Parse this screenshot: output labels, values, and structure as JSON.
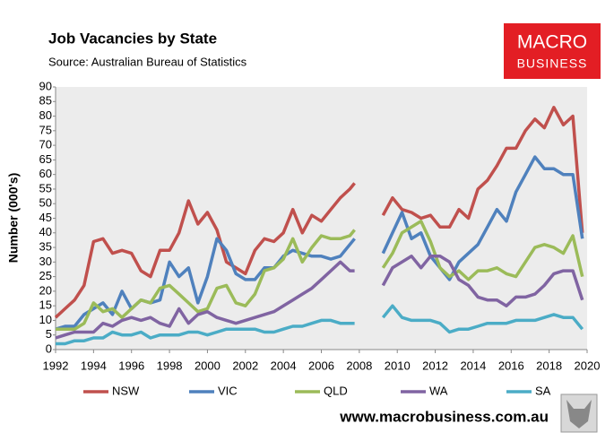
{
  "chart_data": {
    "type": "line",
    "title": "Job Vacancies by State",
    "subtitle": "Source: Australian Bureau of Statistics",
    "ylabel": "Number (000's)",
    "x": [
      1992,
      1992.5,
      1993,
      1993.5,
      1994,
      1994.5,
      1995,
      1995.5,
      1996,
      1996.5,
      1997,
      1997.5,
      1998,
      1998.5,
      1999,
      1999.5,
      2000,
      2000.5,
      2001,
      2001.5,
      2002,
      2002.5,
      2003,
      2003.5,
      2004,
      2004.5,
      2005,
      2005.5,
      2006,
      2006.5,
      2007,
      2007.5,
      2007.75,
      2008.5,
      2009.25,
      2009.75,
      2010.25,
      2010.75,
      2011.25,
      2011.75,
      2012.25,
      2012.75,
      2013.25,
      2013.75,
      2014.25,
      2014.75,
      2015.25,
      2015.75,
      2016.25,
      2016.75,
      2017.25,
      2017.75,
      2018.25,
      2018.75,
      2019.25,
      2019.75
    ],
    "series": [
      {
        "name": "NSW",
        "color": "#c0504d",
        "values": [
          11,
          14,
          17,
          22,
          37,
          38,
          33,
          34,
          33,
          27,
          25,
          34,
          34,
          40,
          51,
          43,
          47,
          41,
          30,
          28,
          26,
          34,
          38,
          37,
          40,
          48,
          40,
          46,
          44,
          48,
          52,
          55,
          57,
          null,
          46,
          52,
          48,
          47,
          45,
          46,
          42,
          42,
          48,
          45,
          55,
          58,
          63,
          69,
          69,
          75,
          79,
          76,
          83,
          77,
          80,
          40
        ]
      },
      {
        "name": "VIC",
        "color": "#4f81bd",
        "values": [
          7,
          8,
          8,
          12,
          14,
          16,
          12,
          20,
          14,
          17,
          16,
          17,
          30,
          25,
          28,
          16,
          25,
          38,
          34,
          26,
          24,
          24,
          28,
          28,
          32,
          34,
          33,
          32,
          32,
          31,
          32,
          36,
          38,
          null,
          33,
          40,
          47,
          38,
          40,
          32,
          28,
          24,
          30,
          33,
          36,
          42,
          48,
          44,
          54,
          60,
          66,
          62,
          62,
          60,
          60,
          38
        ]
      },
      {
        "name": "QLD",
        "color": "#9bbb59",
        "values": [
          7,
          7,
          7,
          9,
          16,
          13,
          14,
          11,
          14,
          17,
          16,
          21,
          22,
          19,
          16,
          13,
          14,
          21,
          22,
          16,
          15,
          19,
          27,
          28,
          31,
          38,
          30,
          35,
          39,
          38,
          38,
          39,
          41,
          null,
          28,
          33,
          40,
          42,
          44,
          37,
          28,
          25,
          27,
          24,
          27,
          27,
          28,
          26,
          25,
          30,
          35,
          36,
          35,
          33,
          39,
          25
        ]
      },
      {
        "name": "WA",
        "color": "#8064a2",
        "values": [
          4,
          5,
          6,
          6,
          6,
          9,
          8,
          10,
          11,
          10,
          11,
          9,
          8,
          14,
          9,
          12,
          13,
          11,
          10,
          9,
          10,
          11,
          12,
          13,
          15,
          17,
          19,
          21,
          24,
          27,
          30,
          27,
          27,
          null,
          22,
          28,
          30,
          32,
          28,
          32,
          32,
          30,
          24,
          22,
          18,
          17,
          17,
          15,
          18,
          18,
          19,
          22,
          26,
          27,
          27,
          17
        ]
      },
      {
        "name": "SA",
        "color": "#4bacc6",
        "values": [
          2,
          2,
          3,
          3,
          4,
          4,
          6,
          5,
          5,
          6,
          4,
          5,
          5,
          5,
          6,
          6,
          5,
          6,
          7,
          7,
          7,
          7,
          6,
          6,
          7,
          8,
          8,
          9,
          10,
          10,
          9,
          9,
          9,
          null,
          11,
          15,
          11,
          10,
          10,
          10,
          9,
          6,
          7,
          7,
          8,
          9,
          9,
          9,
          10,
          10,
          10,
          11,
          12,
          11,
          11,
          7
        ]
      }
    ],
    "xlim": [
      1992,
      2020
    ],
    "xticks": [
      1992,
      1994,
      1996,
      1998,
      2000,
      2002,
      2004,
      2006,
      2008,
      2010,
      2012,
      2014,
      2016,
      2018,
      2020
    ],
    "ylim": [
      0,
      90
    ],
    "yticks": [
      0,
      5,
      10,
      15,
      20,
      25,
      30,
      35,
      40,
      45,
      50,
      55,
      60,
      65,
      70,
      75,
      80,
      85,
      90
    ],
    "grid": false,
    "legend": "bottom"
  },
  "logo": {
    "lines": [
      "MACRO",
      "BUSINESS"
    ]
  },
  "footer": "www.macrobusiness.com.au"
}
